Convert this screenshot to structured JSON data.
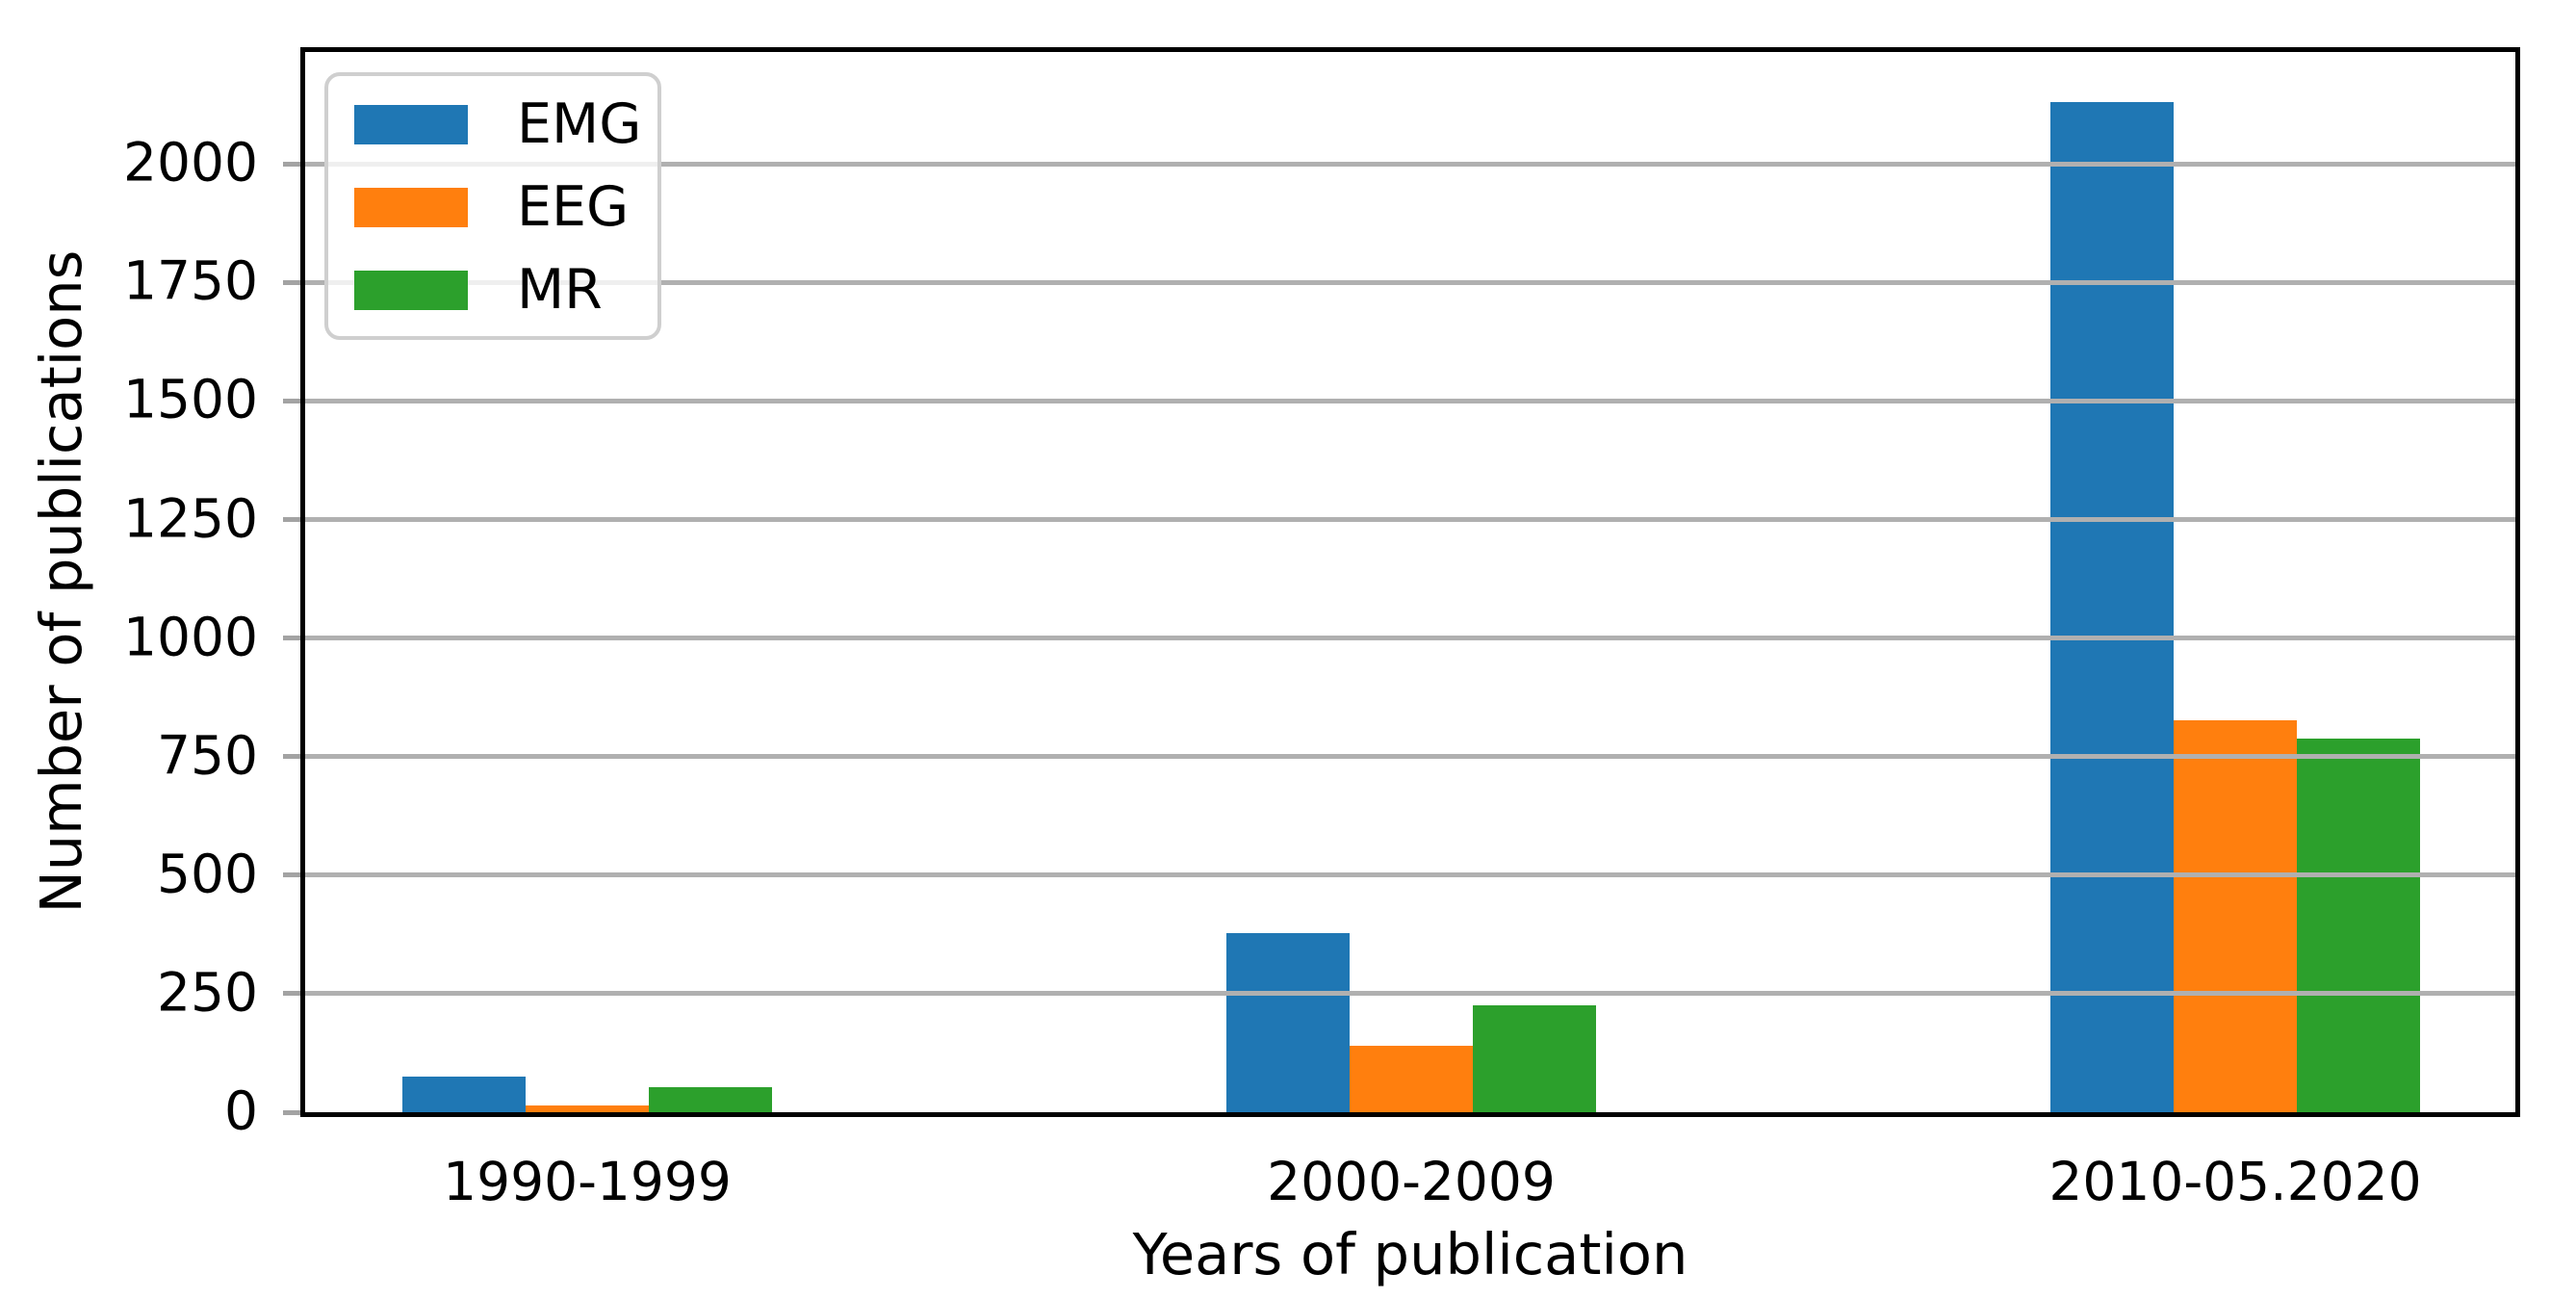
{
  "chart_data": {
    "type": "bar",
    "title": "",
    "categories": [
      "1990-1999",
      "2000-2009",
      "2010-05.2020"
    ],
    "series": [
      {
        "name": "EMG",
        "color": "#1f77b4",
        "values": [
          75,
          377,
          2130
        ]
      },
      {
        "name": "EEG",
        "color": "#ff7f0e",
        "values": [
          15,
          141,
          826
        ]
      },
      {
        "name": "MR",
        "color": "#2ca02c",
        "values": [
          52,
          226,
          788
        ]
      }
    ],
    "xlabel": "Years of publication",
    "ylabel": "Number of publications",
    "yticks": [
      0,
      250,
      500,
      750,
      1000,
      1250,
      1500,
      1750,
      2000
    ],
    "ylim": [
      0,
      2236
    ],
    "grid": true,
    "grid_color": "#b0b0b0",
    "axis_color": "#000000",
    "legend_position": "upper left",
    "legend_border_color": "#cfcfcf",
    "background": "#ffffff"
  }
}
